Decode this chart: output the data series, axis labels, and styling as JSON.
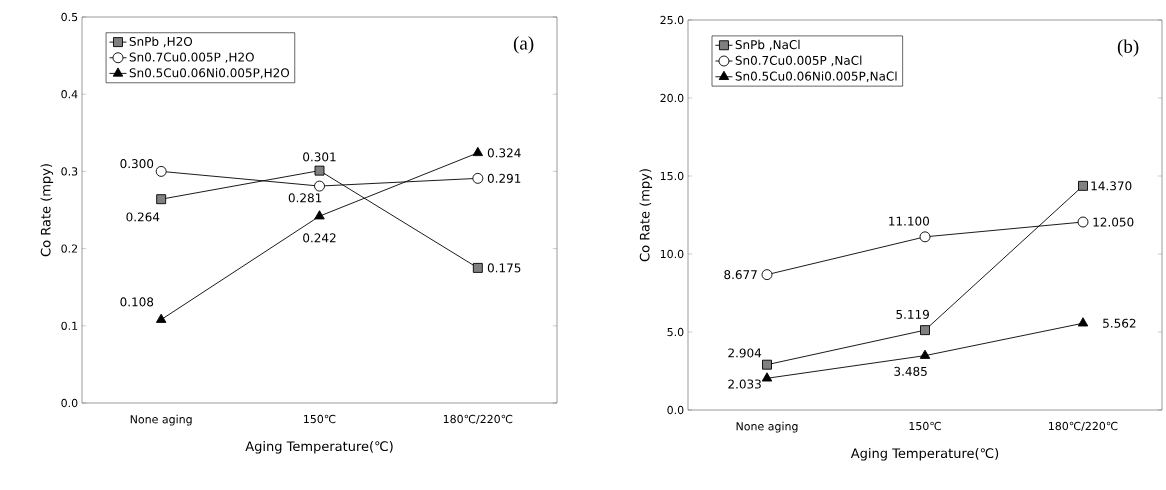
{
  "chart_data": [
    {
      "type": "line",
      "xlabel": "Aging Temperature(℃)",
      "ylabel": "Co Rate (mpy)",
      "categories": [
        "None aging",
        "150℃",
        "180℃/220℃"
      ],
      "ylim": [
        0,
        0.5
      ],
      "yticks": [
        {
          "value": 0,
          "label": "0.0"
        },
        {
          "value": 0.1,
          "label": "0.1"
        },
        {
          "value": 0.2,
          "label": "0.2"
        },
        {
          "value": 0.3,
          "label": "0.3"
        },
        {
          "value": 0.4,
          "label": "0.4"
        },
        {
          "value": 0.5,
          "label": "0.5"
        }
      ],
      "legend": "top left",
      "line_style": "solid",
      "annotations": [
        "(a)"
      ],
      "series": [
        {
          "name": "SnPb ,H2O",
          "color": "#808080",
          "marker": "square",
          "values": [
            0.264,
            0.301,
            0.175
          ],
          "value_labels": [
            "0.264",
            "0.301",
            "0.175"
          ]
        },
        {
          "name": "Sn0.7Cu0.005P ,H2O",
          "color": "#ffffff",
          "marker": "circle",
          "values": [
            0.3,
            0.281,
            0.291
          ],
          "value_labels": [
            "0.300",
            "0.281",
            "0.291"
          ]
        },
        {
          "name": "Sn0.5Cu0.06Ni0.005P,H2O",
          "color": "#000000",
          "marker": "triangle",
          "values": [
            0.108,
            0.242,
            0.324
          ],
          "value_labels": [
            "0.108",
            "0.242",
            "0.324"
          ]
        }
      ]
    },
    {
      "type": "line",
      "xlabel": "Aging Temperature(℃)",
      "ylabel": "Co Rate (mpy)",
      "categories": [
        "None aging",
        "150℃",
        "180℃/220℃"
      ],
      "ylim": [
        0,
        25
      ],
      "yticks": [
        {
          "value": 0,
          "label": "0.0"
        },
        {
          "value": 5,
          "label": "5.0"
        },
        {
          "value": 10,
          "label": "10.0"
        },
        {
          "value": 15,
          "label": "15.0"
        },
        {
          "value": 20,
          "label": "20.0"
        },
        {
          "value": 25,
          "label": "25.0"
        }
      ],
      "legend": "top left",
      "line_style": "solid",
      "annotations": [
        "(b)"
      ],
      "series": [
        {
          "name": "SnPb ,NaCl",
          "color": "#808080",
          "marker": "square",
          "values": [
            2.904,
            5.119,
            14.37
          ],
          "value_labels": [
            "2.904",
            "5.119",
            "14.370"
          ]
        },
        {
          "name": "Sn0.7Cu0.005P ,NaCl",
          "color": "#ffffff",
          "marker": "circle",
          "values": [
            8.677,
            11.1,
            12.05
          ],
          "value_labels": [
            "8.677",
            "11.100",
            "12.050"
          ]
        },
        {
          "name": "Sn0.5Cu0.06Ni0.005P,NaCl",
          "color": "#000000",
          "marker": "triangle",
          "values": [
            2.033,
            3.485,
            5.562
          ],
          "value_labels": [
            "2.033",
            "3.485",
            "5.562"
          ]
        }
      ]
    }
  ]
}
